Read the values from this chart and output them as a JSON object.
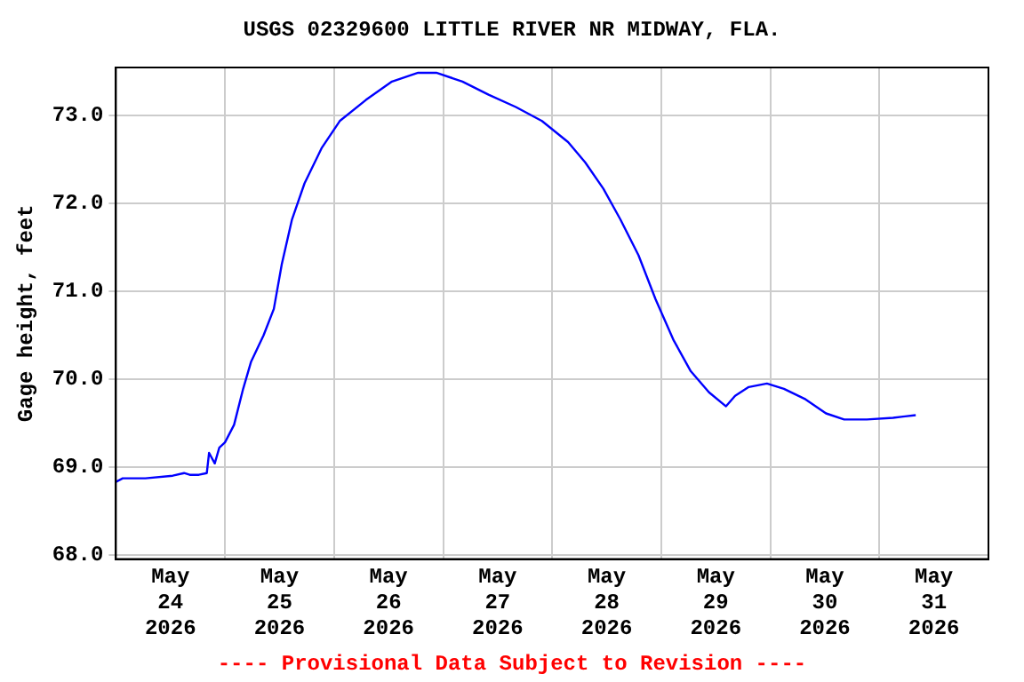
{
  "chart_data": {
    "type": "line",
    "title": "USGS 02329600 LITTLE RIVER NR MIDWAY, FLA.",
    "ylabel": "Gage height, feet",
    "annotations": [
      "---- Provisional Data Subject to Revision ----"
    ],
    "x": [
      "2026-05-24T00:00",
      "2026-05-24T01:30",
      "2026-05-24T06:30",
      "2026-05-24T12:30",
      "2026-05-24T15:00",
      "2026-05-24T16:15",
      "2026-05-24T18:15",
      "2026-05-24T20:00",
      "2026-05-24T20:30",
      "2026-05-24T21:45",
      "2026-05-24T22:45",
      "2026-05-25T00:00",
      "2026-05-25T02:00",
      "2026-05-25T04:00",
      "2026-05-25T05:45",
      "2026-05-25T08:30",
      "2026-05-25T10:45",
      "2026-05-25T12:30",
      "2026-05-25T14:45",
      "2026-05-25T17:30",
      "2026-05-25T21:15",
      "2026-05-26T01:15",
      "2026-05-26T07:00",
      "2026-05-26T12:45",
      "2026-05-26T18:30",
      "2026-05-26T22:30",
      "2026-05-27T04:15",
      "2026-05-27T10:00",
      "2026-05-27T16:00",
      "2026-05-27T21:45",
      "2026-05-28T03:30",
      "2026-05-28T07:15",
      "2026-05-28T11:15",
      "2026-05-28T15:00",
      "2026-05-28T19:00",
      "2026-05-28T22:45",
      "2026-05-29T02:45",
      "2026-05-29T06:30",
      "2026-05-29T10:30",
      "2026-05-29T14:15",
      "2026-05-29T16:15",
      "2026-05-29T19:15",
      "2026-05-29T23:15",
      "2026-05-30T03:00",
      "2026-05-30T07:45",
      "2026-05-30T12:15",
      "2026-05-30T16:15",
      "2026-05-30T21:15",
      "2026-05-31T03:00",
      "2026-05-31T08:00"
    ],
    "series": [
      {
        "color": "#0000ff",
        "values": [
          68.83,
          68.87,
          68.87,
          68.9,
          68.93,
          68.91,
          68.91,
          68.93,
          69.16,
          69.04,
          69.22,
          69.28,
          69.48,
          69.89,
          70.2,
          70.5,
          70.8,
          71.31,
          71.82,
          72.23,
          72.63,
          72.94,
          73.18,
          73.39,
          73.49,
          73.49,
          73.39,
          73.24,
          73.1,
          72.94,
          72.7,
          72.47,
          72.17,
          71.82,
          71.41,
          70.91,
          70.44,
          70.09,
          69.85,
          69.69,
          69.81,
          69.91,
          69.95,
          69.89,
          69.77,
          69.61,
          69.54,
          69.54,
          69.56,
          69.59
        ]
      }
    ],
    "xlim": [
      "2026-05-24T00:00",
      "2026-06-01T00:00"
    ],
    "xticks": [
      {
        "value": "2026-05-24T00:00",
        "label": null
      },
      {
        "value": "2026-05-24T12:00",
        "label": "May 24 2026"
      },
      {
        "value": "2026-05-25T00:00",
        "label": null
      },
      {
        "value": "2026-05-25T12:00",
        "label": "May 25 2026"
      },
      {
        "value": "2026-05-26T00:00",
        "label": null
      },
      {
        "value": "2026-05-26T12:00",
        "label": "May 26 2026"
      },
      {
        "value": "2026-05-27T00:00",
        "label": null
      },
      {
        "value": "2026-05-27T12:00",
        "label": "May 27 2026"
      },
      {
        "value": "2026-05-28T00:00",
        "label": null
      },
      {
        "value": "2026-05-28T12:00",
        "label": "May 28 2026"
      },
      {
        "value": "2026-05-29T00:00",
        "label": null
      },
      {
        "value": "2026-05-29T12:00",
        "label": "May 29 2026"
      },
      {
        "value": "2026-05-30T00:00",
        "label": null
      },
      {
        "value": "2026-05-30T12:00",
        "label": "May 30 2026"
      },
      {
        "value": "2026-05-31T00:00",
        "label": null
      },
      {
        "value": "2026-05-31T12:00",
        "label": "May 31 2026"
      },
      {
        "value": "2026-06-01T00:00",
        "label": null
      }
    ],
    "ylim": [
      67.95,
      73.55
    ],
    "yticks": [
      {
        "value": 68,
        "label": "68.0"
      },
      {
        "value": 69,
        "label": "69.0"
      },
      {
        "value": 70,
        "label": "70.0"
      },
      {
        "value": 71,
        "label": "71.0"
      },
      {
        "value": 72,
        "label": "72.0"
      },
      {
        "value": 73,
        "label": "73.0"
      }
    ],
    "grid": true,
    "legend": false,
    "marker": "none",
    "line_style": "solid"
  }
}
